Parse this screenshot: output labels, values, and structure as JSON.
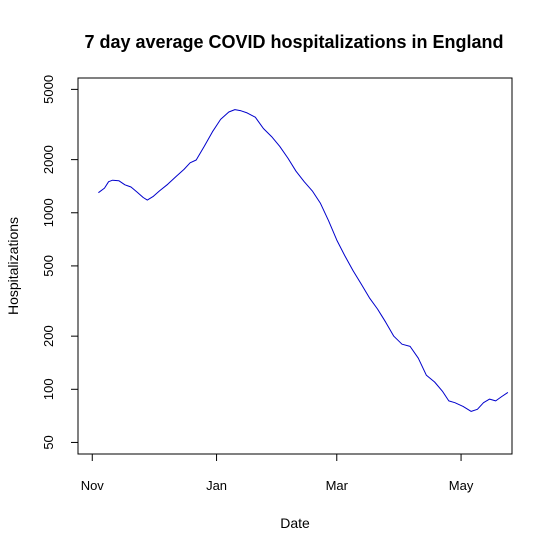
{
  "chart_data": {
    "type": "line",
    "title": "7 day average COVID hospitalizations in England",
    "xlabel": "Date",
    "ylabel": "Hospitalizations",
    "y_scale": "log",
    "ylim": [
      43,
      5800
    ],
    "xlim": [
      "2020-10-25",
      "2021-05-26"
    ],
    "grid": false,
    "x_ticks": [
      {
        "date": "2020-11-01",
        "label": "Nov"
      },
      {
        "date": "2021-01-01",
        "label": "Jan"
      },
      {
        "date": "2021-03-01",
        "label": "Mar"
      },
      {
        "date": "2021-05-01",
        "label": "May"
      }
    ],
    "y_ticks": [
      50,
      100,
      200,
      500,
      1000,
      2000,
      5000
    ],
    "series": [
      {
        "color": "#0000cc",
        "points": [
          [
            "2020-11-04",
            1300
          ],
          [
            "2020-11-07",
            1380
          ],
          [
            "2020-11-09",
            1500
          ],
          [
            "2020-11-11",
            1530
          ],
          [
            "2020-11-14",
            1520
          ],
          [
            "2020-11-17",
            1440
          ],
          [
            "2020-11-20",
            1400
          ],
          [
            "2020-11-23",
            1310
          ],
          [
            "2020-11-26",
            1220
          ],
          [
            "2020-11-28",
            1180
          ],
          [
            "2020-12-01",
            1240
          ],
          [
            "2020-12-04",
            1330
          ],
          [
            "2020-12-08",
            1450
          ],
          [
            "2020-12-12",
            1600
          ],
          [
            "2020-12-16",
            1760
          ],
          [
            "2020-12-19",
            1920
          ],
          [
            "2020-12-22",
            1990
          ],
          [
            "2020-12-26",
            2380
          ],
          [
            "2020-12-30",
            2880
          ],
          [
            "2021-01-03",
            3380
          ],
          [
            "2021-01-07",
            3720
          ],
          [
            "2021-01-10",
            3840
          ],
          [
            "2021-01-13",
            3780
          ],
          [
            "2021-01-16",
            3680
          ],
          [
            "2021-01-20",
            3480
          ],
          [
            "2021-01-24",
            3000
          ],
          [
            "2021-01-28",
            2700
          ],
          [
            "2021-02-01",
            2380
          ],
          [
            "2021-02-05",
            2040
          ],
          [
            "2021-02-09",
            1720
          ],
          [
            "2021-02-13",
            1500
          ],
          [
            "2021-02-17",
            1330
          ],
          [
            "2021-02-21",
            1130
          ],
          [
            "2021-02-25",
            900
          ],
          [
            "2021-03-01",
            700
          ],
          [
            "2021-03-05",
            570
          ],
          [
            "2021-03-09",
            470
          ],
          [
            "2021-03-13",
            395
          ],
          [
            "2021-03-17",
            330
          ],
          [
            "2021-03-21",
            285
          ],
          [
            "2021-03-25",
            240
          ],
          [
            "2021-03-29",
            200
          ],
          [
            "2021-04-02",
            180
          ],
          [
            "2021-04-06",
            175
          ],
          [
            "2021-04-10",
            150
          ],
          [
            "2021-04-14",
            120
          ],
          [
            "2021-04-18",
            110
          ],
          [
            "2021-04-22",
            97
          ],
          [
            "2021-04-25",
            86
          ],
          [
            "2021-04-28",
            84
          ],
          [
            "2021-05-02",
            80
          ],
          [
            "2021-05-06",
            75
          ],
          [
            "2021-05-09",
            77
          ],
          [
            "2021-05-12",
            84
          ],
          [
            "2021-05-15",
            88
          ],
          [
            "2021-05-18",
            86
          ],
          [
            "2021-05-21",
            91
          ],
          [
            "2021-05-24",
            96
          ]
        ]
      }
    ]
  }
}
